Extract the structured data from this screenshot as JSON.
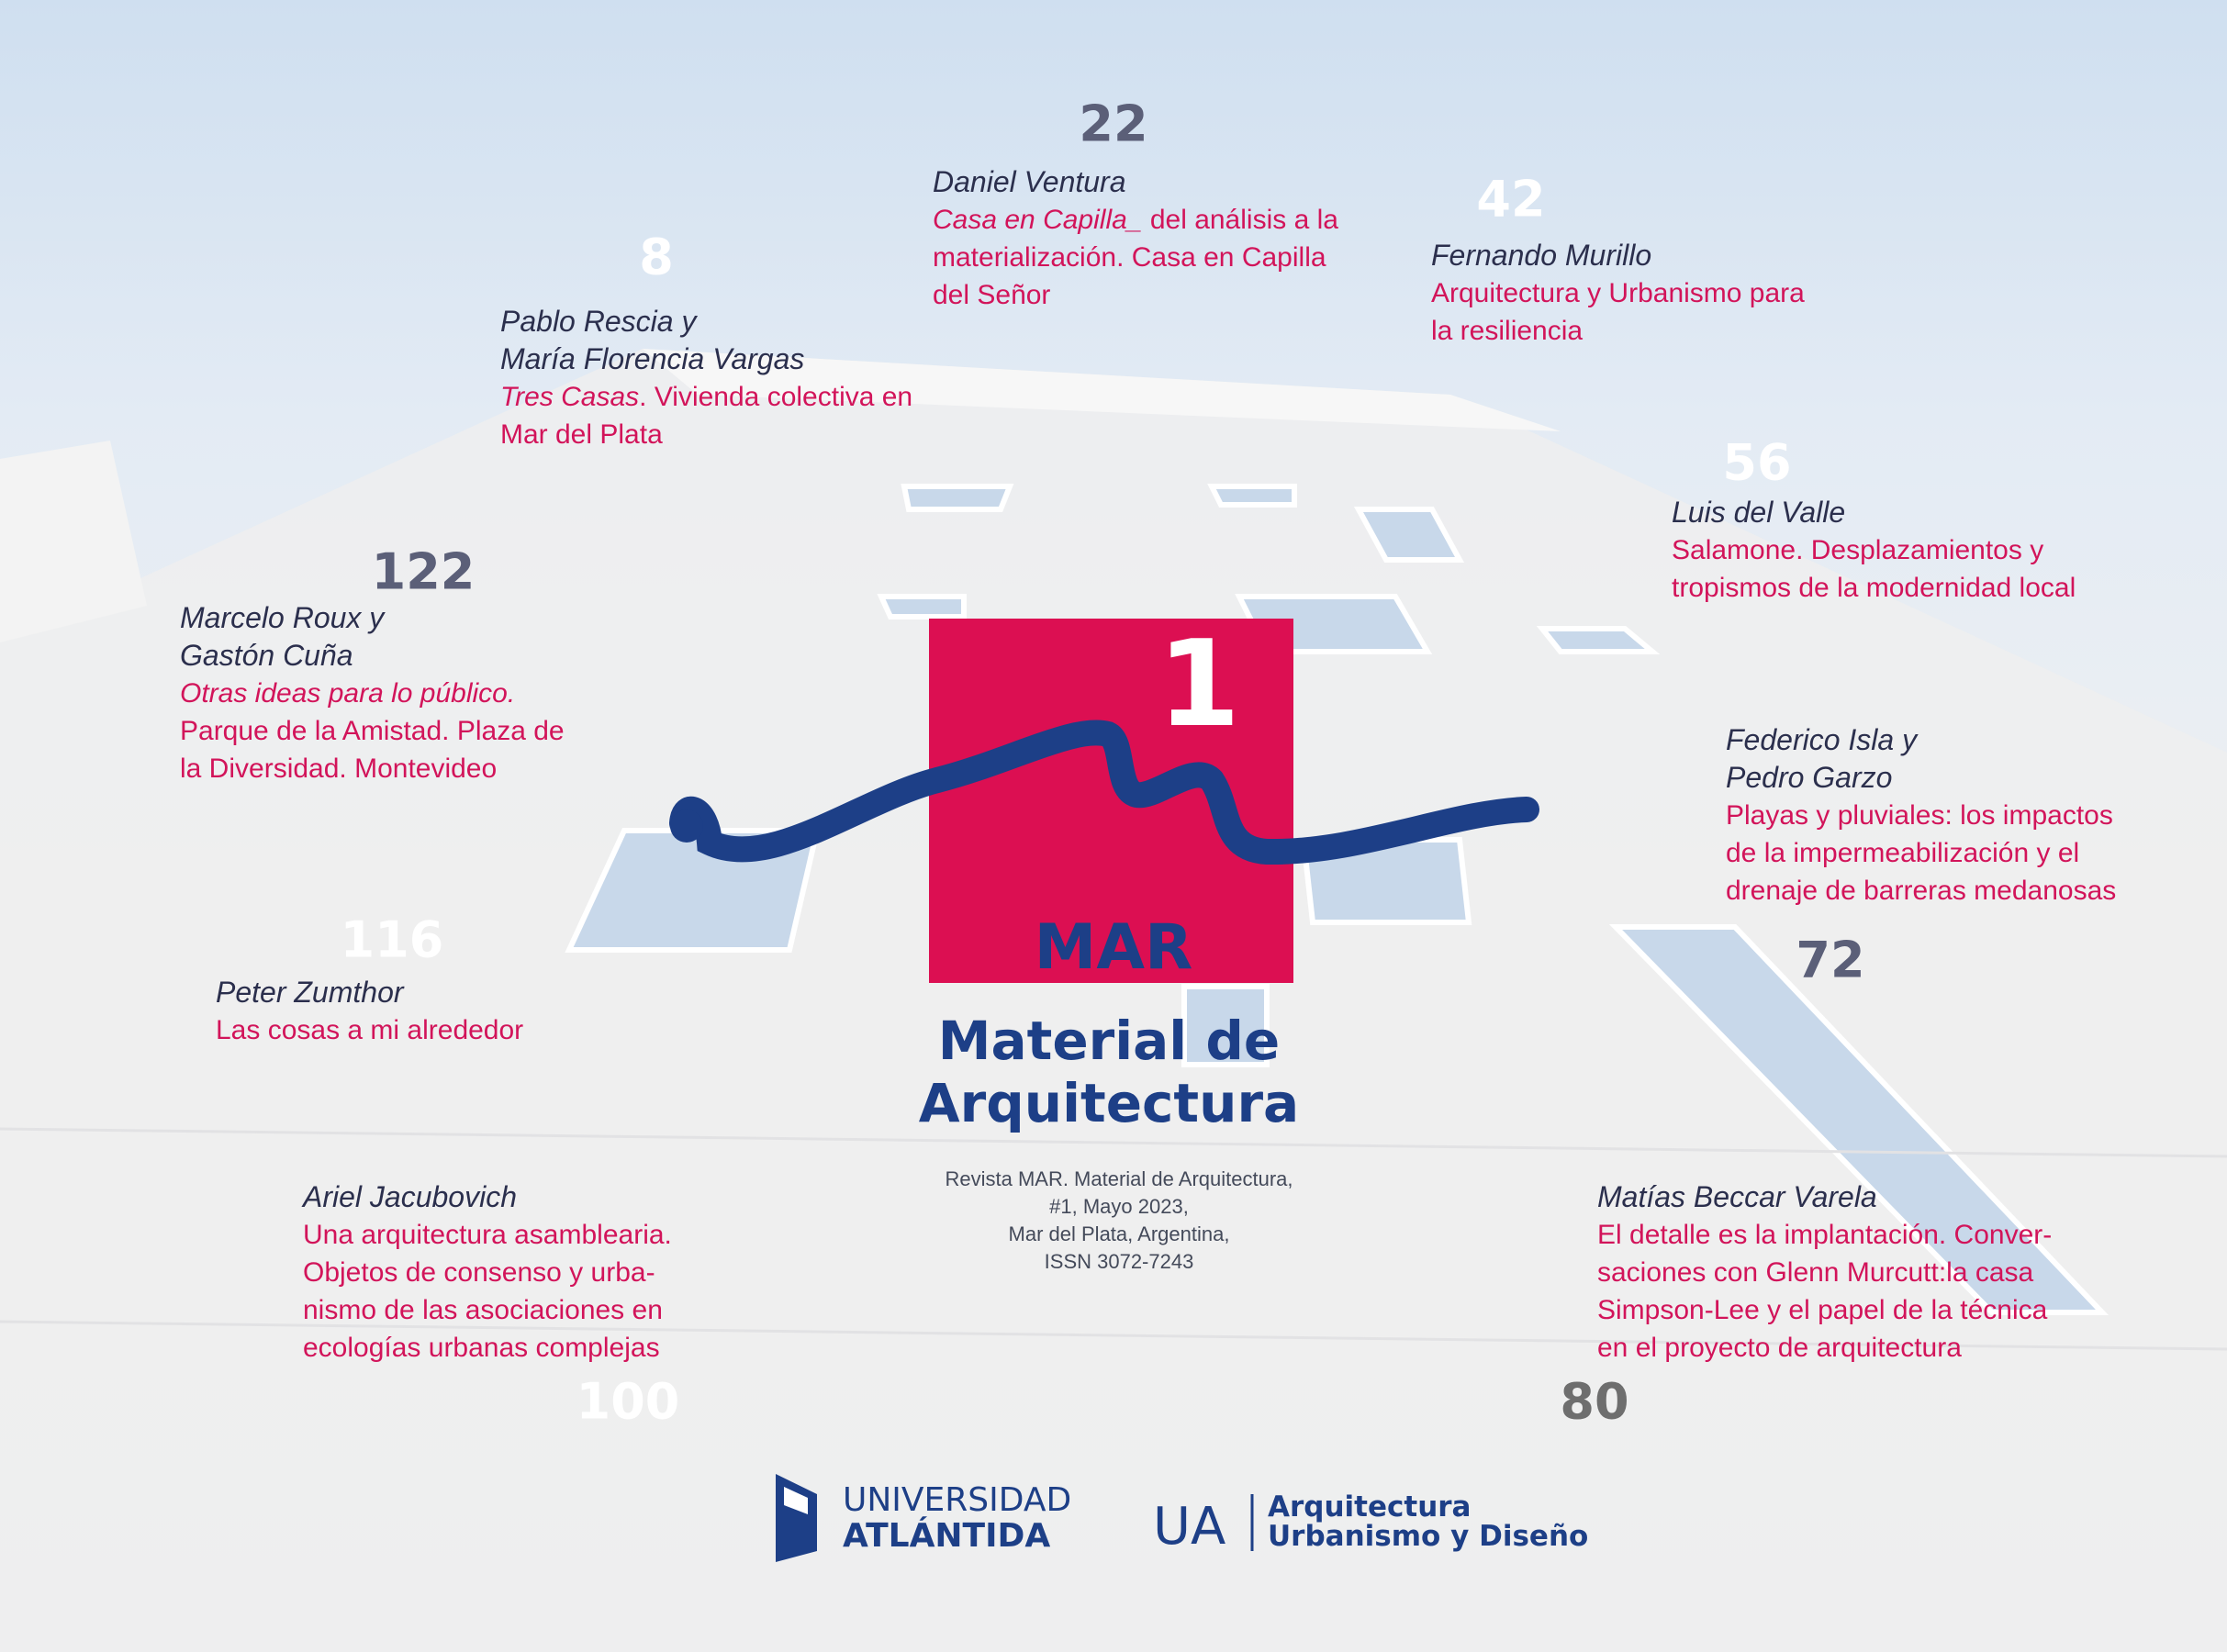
{
  "articles": [
    {
      "page": 22,
      "author": [
        "Daniel Ventura"
      ],
      "title_lines": [
        {
          "italic": "Casa en Capilla_",
          "text": " del análisis a la"
        },
        "materialización. Casa en Capilla",
        "del Señor"
      ]
    },
    {
      "page": 8,
      "author": [
        "Pablo Rescia y",
        "María Florencia Vargas"
      ],
      "title_lines": [
        {
          "italic": "Tres Casas",
          "text": ". Vivienda colectiva en"
        },
        "Mar del Plata"
      ]
    },
    {
      "page": 42,
      "author": [
        "Fernando Murillo"
      ],
      "title_lines": [
        "Arquitectura y Urbanismo para",
        "la resiliencia"
      ]
    },
    {
      "page": 56,
      "author": [
        "Luis del Valle"
      ],
      "title_lines": [
        "Salamone. Desplazamientos y",
        "tropismos de la modernidad local"
      ]
    },
    {
      "page": 122,
      "author": [
        "Marcelo Roux y",
        "Gastón Cuña"
      ],
      "title_lines": [
        {
          "italic": "Otras ideas para lo público."
        },
        "Parque de la Amistad. Plaza de",
        "la Diversidad. Montevideo"
      ]
    },
    {
      "page": 72,
      "author": [
        "Federico Isla y",
        "Pedro Garzo"
      ],
      "title_lines": [
        "Playas y pluviales: los impactos",
        "de la impermeabilización y el",
        "drenaje de barreras medanosas"
      ]
    },
    {
      "page": 116,
      "author": [
        "Peter Zumthor"
      ],
      "title_lines": [
        "Las cosas a mi alrededor"
      ]
    },
    {
      "page": 100,
      "author": [
        "Ariel Jacubovich"
      ],
      "title_lines": [
        "Una arquitectura asamblearia.",
        "Objetos de consenso y urba-",
        "nismo de las asociaciones en",
        "ecologías urbanas complejas"
      ]
    },
    {
      "page": 80,
      "author": [
        "Matías Beccar Varela"
      ],
      "title_lines": [
        "El detalle es la implantación. Conver-",
        "saciones con Glenn Murcutt:la casa",
        "Simpson-Lee y el papel de la técnica",
        "en el proyecto de arquitectura"
      ]
    }
  ],
  "logo": {
    "number": 1,
    "name": "MAR",
    "subtitle": "Material de Arquitectura"
  },
  "imprint": [
    "Revista MAR. Material de Arquitectura,",
    "#1, Mayo 2023,",
    "Mar del Plata, Argentina,",
    "ISSN 3072-7243"
  ],
  "footer": {
    "university": [
      "UNIVERSIDAD",
      "ATLÁNTIDA"
    ],
    "ua": "UA",
    "faculty": [
      "Arquitectura",
      "Urbanismo y Diseño"
    ]
  }
}
